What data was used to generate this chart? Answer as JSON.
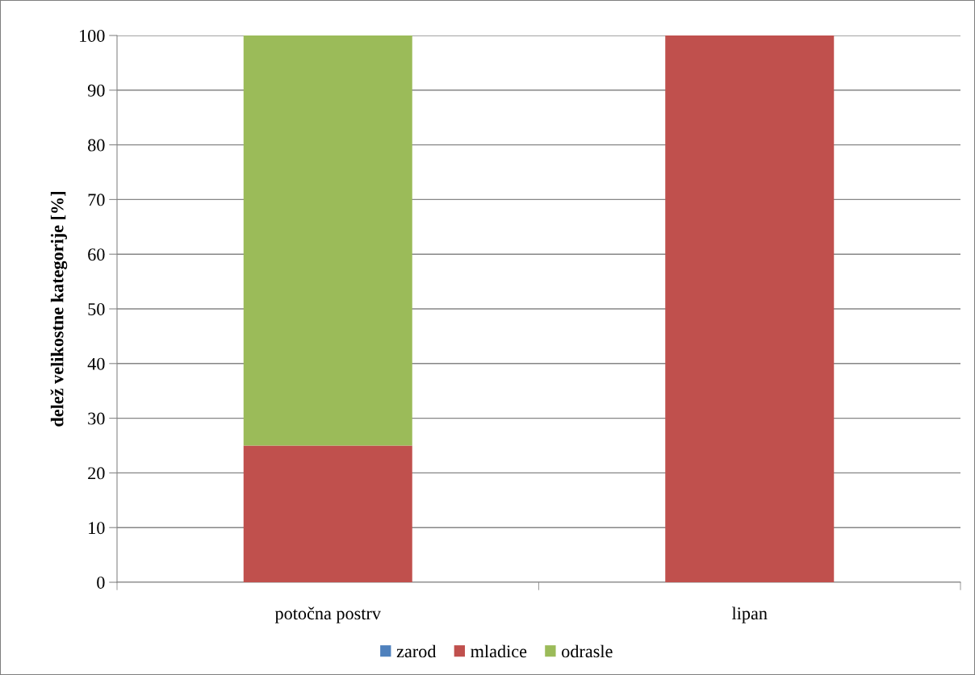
{
  "chart_data": {
    "type": "bar",
    "stacked": true,
    "ylabel": "delež velikostne kategorije [%]",
    "categories": [
      "potočna postrv",
      "lipan"
    ],
    "series": [
      {
        "name": "zarod",
        "color": "#4f81bd",
        "values": [
          0,
          0
        ]
      },
      {
        "name": "mladice",
        "color": "#c0504d",
        "values": [
          25,
          100
        ]
      },
      {
        "name": "odrasle",
        "color": "#9bbb59",
        "values": [
          75,
          0
        ]
      }
    ],
    "ylim": [
      0,
      100
    ],
    "yticks": [
      0,
      10,
      20,
      30,
      40,
      50,
      60,
      70,
      80,
      90,
      100
    ],
    "grid": "y",
    "legend": "bottom"
  }
}
